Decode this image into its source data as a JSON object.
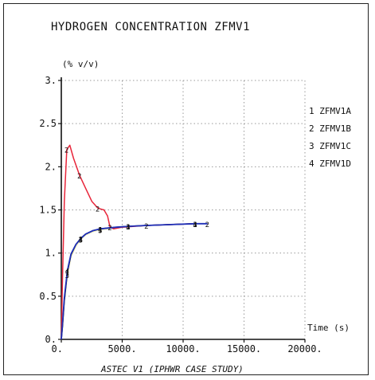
{
  "chart_data": {
    "type": "line",
    "title": "HYDROGEN CONCENTRATION ZFMV1",
    "ylabel": "(% v/v)",
    "xlabel": "Time (s)",
    "caption": "ASTEC V1 (IPHWR CASE STUDY)",
    "xlim": [
      0,
      20000
    ],
    "ylim": [
      0,
      3
    ],
    "x_ticks": [
      "0.",
      "5000.",
      "10000.",
      "15000.",
      "20000."
    ],
    "x_tick_values": [
      0,
      5000,
      10000,
      15000,
      20000
    ],
    "y_ticks": [
      "0.",
      "0.5",
      "1.",
      "1.5",
      "2.",
      "2.5",
      "3."
    ],
    "y_tick_values": [
      0,
      0.5,
      1,
      1.5,
      2,
      2.5,
      3
    ],
    "grid": true,
    "legend_position": "right",
    "series": [
      {
        "name": "ZFMV1A",
        "marker": "1",
        "color": "#111111",
        "x": [
          0,
          100,
          250,
          500,
          800,
          1200,
          1600,
          2000,
          2600,
          3200,
          3800,
          4500,
          5500,
          7000,
          9000,
          11000,
          12000
        ],
        "y": [
          0,
          0.15,
          0.45,
          0.78,
          0.98,
          1.1,
          1.17,
          1.22,
          1.26,
          1.28,
          1.29,
          1.3,
          1.31,
          1.32,
          1.33,
          1.34,
          1.34
        ]
      },
      {
        "name": "ZFMV1B",
        "marker": "2",
        "color": "#e8253a",
        "x": [
          0,
          100,
          250,
          450,
          700,
          1000,
          1500,
          2000,
          2500,
          3000,
          3500,
          3800,
          4000,
          4300,
          5000,
          7000,
          9000,
          11000,
          12000
        ],
        "y": [
          0,
          0.7,
          1.6,
          2.2,
          2.25,
          2.1,
          1.9,
          1.75,
          1.6,
          1.52,
          1.5,
          1.43,
          1.3,
          1.28,
          1.3,
          1.32,
          1.33,
          1.34,
          1.34
        ]
      },
      {
        "name": "ZFMV1C",
        "marker": "3",
        "color": "#f2f0b0",
        "x": [
          0,
          100,
          250,
          500,
          800,
          1200,
          1600,
          2000,
          2600,
          3200,
          3800,
          4500,
          5500,
          7000,
          9000,
          11000,
          12000
        ],
        "y": [
          0,
          0.12,
          0.42,
          0.75,
          0.96,
          1.08,
          1.16,
          1.21,
          1.25,
          1.27,
          1.28,
          1.3,
          1.31,
          1.32,
          1.33,
          1.34,
          1.34
        ]
      },
      {
        "name": "ZFMV1D",
        "marker": "4",
        "color": "#1f2fb8",
        "x": [
          0,
          100,
          250,
          500,
          800,
          1200,
          1600,
          2000,
          2600,
          3200,
          3800,
          4500,
          5500,
          7000,
          9000,
          11000,
          12000
        ],
        "y": [
          0,
          0.18,
          0.48,
          0.8,
          0.99,
          1.1,
          1.17,
          1.22,
          1.26,
          1.28,
          1.29,
          1.3,
          1.31,
          1.32,
          1.33,
          1.34,
          1.34
        ]
      }
    ]
  }
}
